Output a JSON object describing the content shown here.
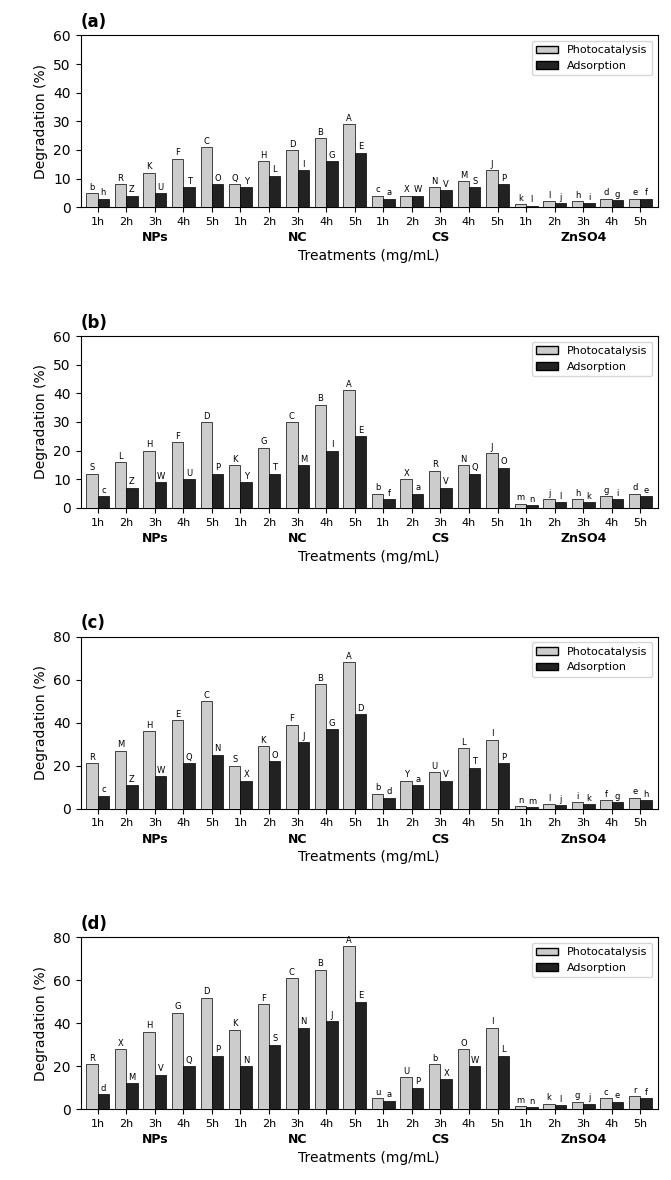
{
  "chart_data": [
    {
      "type": "bar",
      "title": "(a)",
      "x_label": "Treatments (mg/mL)",
      "y_label": "Degradation (%)",
      "categories": [
        "1h",
        "2h",
        "3h",
        "4h",
        "5h",
        "1h",
        "2h",
        "3h",
        "4h",
        "5h",
        "1h",
        "2h",
        "3h",
        "4h",
        "5h",
        "1h",
        "2h",
        "3h",
        "4h",
        "5h"
      ],
      "groups": [
        "NPs",
        "NC",
        "CS",
        "ZnSO4"
      ],
      "series": [
        {
          "name": "Photocatalysis",
          "color": "#cccccc",
          "values": [
            5,
            8,
            12,
            17,
            21,
            8,
            16,
            20,
            24,
            29,
            4,
            4,
            7,
            9,
            13,
            1,
            2,
            2,
            3,
            3
          ],
          "annotations": [
            "b",
            "R",
            "K",
            "F",
            "C",
            "Q",
            "H",
            "D",
            "B",
            "A",
            "c",
            "X",
            "N",
            "M",
            "J",
            "k",
            "l",
            "h",
            "d",
            "e"
          ]
        },
        {
          "name": "Adsorption",
          "color": "#222222",
          "values": [
            3,
            4,
            5,
            7,
            8,
            7,
            11,
            13,
            16,
            19,
            3,
            4,
            6,
            7,
            8,
            0.5,
            1.5,
            1.5,
            2.5,
            3
          ],
          "annotations": [
            "h",
            "Z",
            "U",
            "T",
            "O",
            "Y",
            "L",
            "I",
            "G",
            "E",
            "a",
            "W",
            "V",
            "S",
            "P",
            "l",
            "j",
            "i",
            "g",
            "f"
          ]
        }
      ],
      "ylim": [
        0,
        60
      ],
      "yticks": [
        0,
        10,
        20,
        30,
        40,
        50,
        60
      ],
      "legend": "upper right"
    },
    {
      "type": "bar",
      "title": "(b)",
      "x_label": "Treatments (mg/mL)",
      "y_label": "Degradation (%)",
      "categories": [
        "1h",
        "2h",
        "3h",
        "4h",
        "5h",
        "1h",
        "2h",
        "3h",
        "4h",
        "5h",
        "1h",
        "2h",
        "3h",
        "4h",
        "5h",
        "1h",
        "2h",
        "3h",
        "4h",
        "5h"
      ],
      "groups": [
        "NPs",
        "NC",
        "CS",
        "ZnSO4"
      ],
      "series": [
        {
          "name": "Photocatalysis",
          "color": "#cccccc",
          "values": [
            12,
            16,
            20,
            23,
            30,
            15,
            21,
            30,
            36,
            41,
            5,
            10,
            13,
            15,
            19,
            1.5,
            3,
            3,
            4,
            5
          ],
          "annotations": [
            "S",
            "L",
            "H",
            "F",
            "D",
            "K",
            "G",
            "C",
            "B",
            "A",
            "b",
            "X",
            "R",
            "N",
            "J",
            "m",
            "j",
            "h",
            "g",
            "d"
          ]
        },
        {
          "name": "Adsorption",
          "color": "#222222",
          "values": [
            4,
            7,
            9,
            10,
            12,
            9,
            12,
            15,
            20,
            25,
            3,
            5,
            7,
            12,
            14,
            1,
            2,
            2,
            3,
            4
          ],
          "annotations": [
            "c",
            "Z",
            "W",
            "U",
            "P",
            "Y",
            "T",
            "M",
            "I",
            "E",
            "f",
            "a",
            "V",
            "Q",
            "O",
            "n",
            "l",
            "k",
            "i",
            "e"
          ]
        }
      ],
      "ylim": [
        0,
        60
      ],
      "yticks": [
        0,
        10,
        20,
        30,
        40,
        50,
        60
      ],
      "legend": "upper right"
    },
    {
      "type": "bar",
      "title": "(c)",
      "x_label": "Treatments (mg/mL)",
      "y_label": "Degradation (%)",
      "categories": [
        "1h",
        "2h",
        "3h",
        "4h",
        "5h",
        "1h",
        "2h",
        "3h",
        "4h",
        "5h",
        "1h",
        "2h",
        "3h",
        "4h",
        "5h",
        "1h",
        "2h",
        "3h",
        "4h",
        "5h"
      ],
      "groups": [
        "NPs",
        "NC",
        "CS",
        "ZnSO4"
      ],
      "series": [
        {
          "name": "Photocatalysis",
          "color": "#cccccc",
          "values": [
            21,
            27,
            36,
            41,
            50,
            20,
            29,
            39,
            58,
            68,
            7,
            13,
            17,
            28,
            32,
            1,
            2,
            3,
            4,
            5
          ],
          "annotations": [
            "R",
            "M",
            "H",
            "E",
            "C",
            "S",
            "K",
            "F",
            "B",
            "A",
            "b",
            "Y",
            "U",
            "L",
            "I",
            "n",
            "l",
            "i",
            "f",
            "e"
          ]
        },
        {
          "name": "Adsorption",
          "color": "#222222",
          "values": [
            6,
            11,
            15,
            21,
            25,
            13,
            22,
            31,
            37,
            44,
            5,
            11,
            13,
            19,
            21,
            0.5,
            1.5,
            2,
            3,
            4
          ],
          "annotations": [
            "c",
            "Z",
            "W",
            "Q",
            "N",
            "X",
            "O",
            "J",
            "G",
            "D",
            "d",
            "a",
            "V",
            "T",
            "P",
            "m",
            "j",
            "k",
            "g",
            "h"
          ]
        }
      ],
      "ylim": [
        0,
        80
      ],
      "yticks": [
        0,
        20,
        40,
        60,
        80
      ],
      "legend": "upper right"
    },
    {
      "type": "bar",
      "title": "(d)",
      "x_label": "Treatments (mg/mL)",
      "y_label": "Degradation (%)",
      "categories": [
        "1h",
        "2h",
        "3h",
        "4h",
        "5h",
        "1h",
        "2h",
        "3h",
        "4h",
        "5h",
        "1h",
        "2h",
        "3h",
        "4h",
        "5h",
        "1h",
        "2h",
        "3h",
        "4h",
        "5h"
      ],
      "groups": [
        "NPs",
        "NC",
        "CS",
        "ZnSO4"
      ],
      "series": [
        {
          "name": "Photocatalysis",
          "color": "#cccccc",
          "values": [
            21,
            28,
            36,
            45,
            52,
            37,
            49,
            61,
            65,
            76,
            5,
            15,
            21,
            28,
            38,
            1.5,
            2.5,
            3.5,
            5,
            6
          ],
          "annotations": [
            "R",
            "X",
            "H",
            "G",
            "D",
            "K",
            "F",
            "C",
            "B",
            "A",
            "u",
            "U",
            "b",
            "O",
            "I",
            "m",
            "k",
            "g",
            "c",
            "r"
          ]
        },
        {
          "name": "Adsorption",
          "color": "#222222",
          "values": [
            7,
            12,
            16,
            20,
            25,
            20,
            30,
            38,
            41,
            50,
            4,
            10,
            14,
            20,
            25,
            1,
            2,
            2.5,
            3.5,
            5
          ],
          "annotations": [
            "d",
            "M",
            "V",
            "Q",
            "P",
            "N",
            "S",
            "N",
            "J",
            "E",
            "a",
            "P",
            "X",
            "W",
            "L",
            "n",
            "l",
            "j",
            "e",
            "f"
          ]
        }
      ],
      "ylim": [
        0,
        80
      ],
      "yticks": [
        0,
        20,
        40,
        60,
        80
      ],
      "legend": "upper right"
    }
  ]
}
